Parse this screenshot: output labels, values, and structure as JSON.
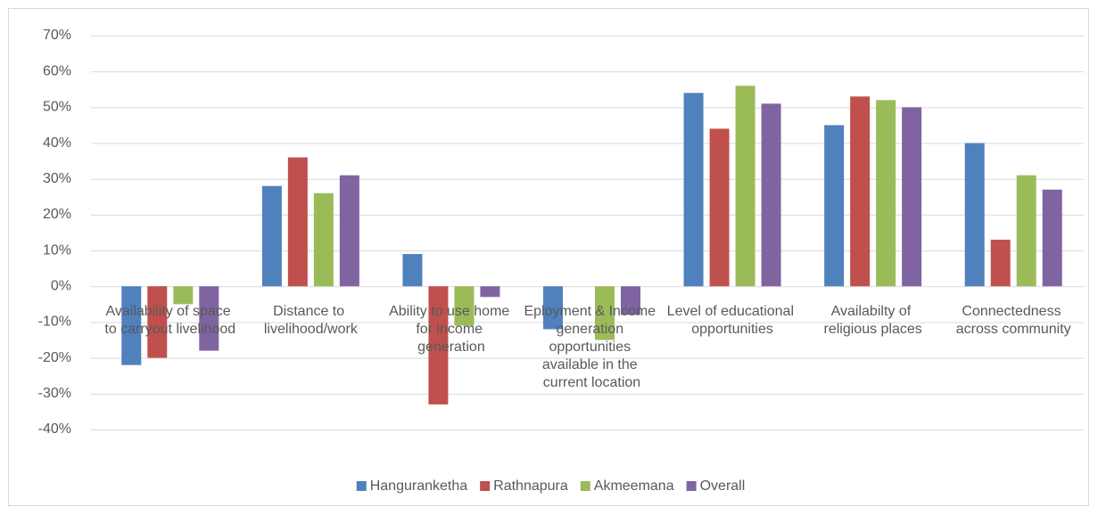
{
  "chart_data": {
    "type": "bar",
    "categories": [
      "Availability of space to carryout livelihood",
      "Distance to livelihood/work",
      "Ability to use home for income generation",
      "Eployment & Income generation opportunities available in the current location",
      "Level of educational opportunities",
      "Availabilty of religious places",
      "Connectedness across community"
    ],
    "series": [
      {
        "name": "Hanguranketha",
        "color": "#4f81bd",
        "values": [
          -22,
          28,
          9,
          -12,
          54,
          45,
          40
        ]
      },
      {
        "name": "Rathnapura",
        "color": "#c0504d",
        "values": [
          -20,
          36,
          -33,
          0,
          44,
          53,
          13
        ]
      },
      {
        "name": "Akmeemana",
        "color": "#9bbb59",
        "values": [
          -5,
          26,
          -11,
          -15,
          56,
          52,
          31
        ]
      },
      {
        "name": "Overall",
        "color": "#8064a2",
        "values": [
          -18,
          31,
          -3,
          -8,
          51,
          50,
          27
        ]
      }
    ],
    "ylim": [
      -40,
      70
    ],
    "yticks": [
      {
        "value": -40,
        "label": "-40%"
      },
      {
        "value": -30,
        "label": "-30%"
      },
      {
        "value": -20,
        "label": "-20%"
      },
      {
        "value": -10,
        "label": "-10%"
      },
      {
        "value": 0,
        "label": "0%"
      },
      {
        "value": 10,
        "label": "10%"
      },
      {
        "value": 20,
        "label": "20%"
      },
      {
        "value": 30,
        "label": "30%"
      },
      {
        "value": 40,
        "label": "40%"
      },
      {
        "value": 50,
        "label": "50%"
      },
      {
        "value": 60,
        "label": "60%"
      },
      {
        "value": 70,
        "label": "70%"
      }
    ],
    "grid": true,
    "legend": "bottom"
  }
}
